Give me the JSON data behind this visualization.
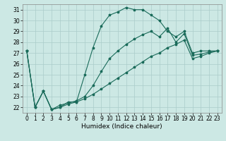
{
  "bg_color": "#cce8e4",
  "grid_color": "#aaccca",
  "line_color": "#1a6b5a",
  "xlabel": "Humidex (Indice chaleur)",
  "xlim": [
    -0.5,
    23.5
  ],
  "ylim": [
    21.5,
    31.5
  ],
  "yticks": [
    22,
    23,
    24,
    25,
    26,
    27,
    28,
    29,
    30,
    31
  ],
  "xticks": [
    0,
    1,
    2,
    3,
    4,
    5,
    6,
    7,
    8,
    9,
    10,
    11,
    12,
    13,
    14,
    15,
    16,
    17,
    18,
    19,
    20,
    21,
    22,
    23
  ],
  "y_top": [
    27.2,
    22.0,
    23.5,
    21.8,
    22.0,
    22.5,
    22.5,
    25.0,
    27.5,
    29.5,
    30.5,
    30.8,
    31.2,
    31.0,
    31.0,
    30.5,
    30.0,
    29.0,
    28.5,
    29.0,
    27.0,
    27.2,
    27.2,
    27.2
  ],
  "y_mid": [
    27.2,
    22.0,
    23.5,
    21.8,
    22.2,
    22.4,
    22.6,
    23.0,
    24.0,
    25.3,
    26.5,
    27.2,
    27.8,
    28.3,
    28.7,
    29.0,
    28.5,
    29.3,
    28.0,
    28.8,
    26.8,
    26.9,
    27.1,
    27.2
  ],
  "y_bot": [
    27.2,
    22.0,
    23.5,
    21.8,
    22.0,
    22.3,
    22.5,
    22.8,
    23.2,
    23.7,
    24.2,
    24.7,
    25.2,
    25.7,
    26.2,
    26.7,
    27.0,
    27.5,
    27.8,
    28.2,
    26.5,
    26.7,
    27.0,
    27.2
  ],
  "xlabel_fontsize": 6.5,
  "tick_fontsize": 5.5,
  "lw": 0.8,
  "markersize": 2.5
}
